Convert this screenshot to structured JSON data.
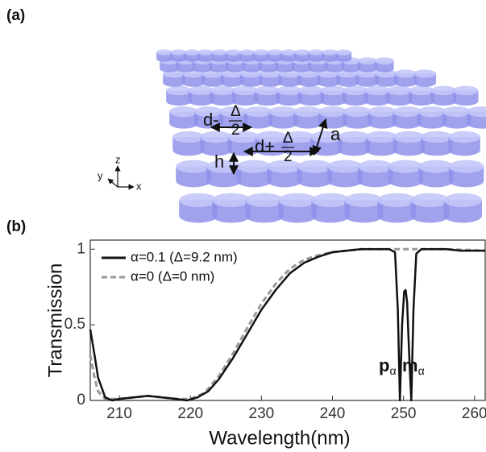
{
  "panel_a": {
    "label": "(a)",
    "annotations": {
      "d_minus": "d-",
      "delta_1": "Δ",
      "two_1": "2",
      "d_plus": "d+",
      "delta_2": "Δ",
      "two_2": "2",
      "a": "a",
      "h": "h"
    },
    "axes": {
      "z": "z",
      "y": "y",
      "x": "x"
    }
  },
  "chart_data": {
    "type": "line",
    "panel_label": "(b)",
    "xlabel": "Wavelength(nm)",
    "ylabel": "Transmission",
    "xlim": [
      205.9,
      261.5
    ],
    "xticks": [
      210,
      220,
      230,
      240,
      250,
      260
    ],
    "ylim": [
      0,
      1.06
    ],
    "yticks": [
      0,
      0.5,
      1
    ],
    "legend": "upper left",
    "annotations": [
      {
        "text": "p",
        "sub": "α"
      },
      {
        "text": "m",
        "sub": "α"
      }
    ],
    "series": [
      {
        "name": "α=0.1 (Δ=9.2 nm)",
        "color": "#111111",
        "style": "solid",
        "x": [
          205.9,
          206.5,
          207,
          208,
          209,
          210,
          212,
          214,
          216,
          218,
          219.5,
          221,
          222.5,
          224,
          226,
          228,
          230,
          232,
          234,
          236,
          238,
          240,
          242,
          244,
          246,
          248,
          248.8,
          249.2,
          249.5,
          249.8,
          250.1,
          250.3,
          250.5,
          250.8,
          251.1,
          251.4,
          251.8,
          252.5,
          254,
          256,
          258,
          260,
          261.5
        ],
        "values": [
          0.47,
          0.3,
          0.15,
          0.02,
          0,
          0.01,
          0.02,
          0.03,
          0.02,
          0.01,
          0,
          0.02,
          0.06,
          0.14,
          0.28,
          0.44,
          0.6,
          0.73,
          0.84,
          0.91,
          0.95,
          0.98,
          0.99,
          1,
          1,
          1,
          0.98,
          0.6,
          0,
          0.5,
          0.72,
          0.73,
          0.65,
          0.3,
          0,
          0.6,
          0.97,
          1,
          1,
          1,
          0.99,
          0.99,
          0.99
        ]
      },
      {
        "name": "α=0 (Δ=0 nm)",
        "color": "#999999",
        "style": "dashed",
        "x": [
          205.9,
          206.5,
          207,
          208,
          210,
          212,
          214,
          216,
          218,
          220,
          222,
          224,
          226,
          228,
          230,
          232,
          234,
          236,
          238,
          240,
          242,
          244,
          246,
          248,
          250,
          252,
          256,
          261.5
        ],
        "values": [
          0.3,
          0.15,
          0.06,
          0.01,
          0.01,
          0.02,
          0.03,
          0.02,
          0.01,
          0.01,
          0.05,
          0.16,
          0.31,
          0.48,
          0.64,
          0.77,
          0.87,
          0.93,
          0.96,
          0.98,
          0.99,
          1,
          1,
          1,
          1,
          1,
          1,
          0.99
        ]
      }
    ]
  }
}
